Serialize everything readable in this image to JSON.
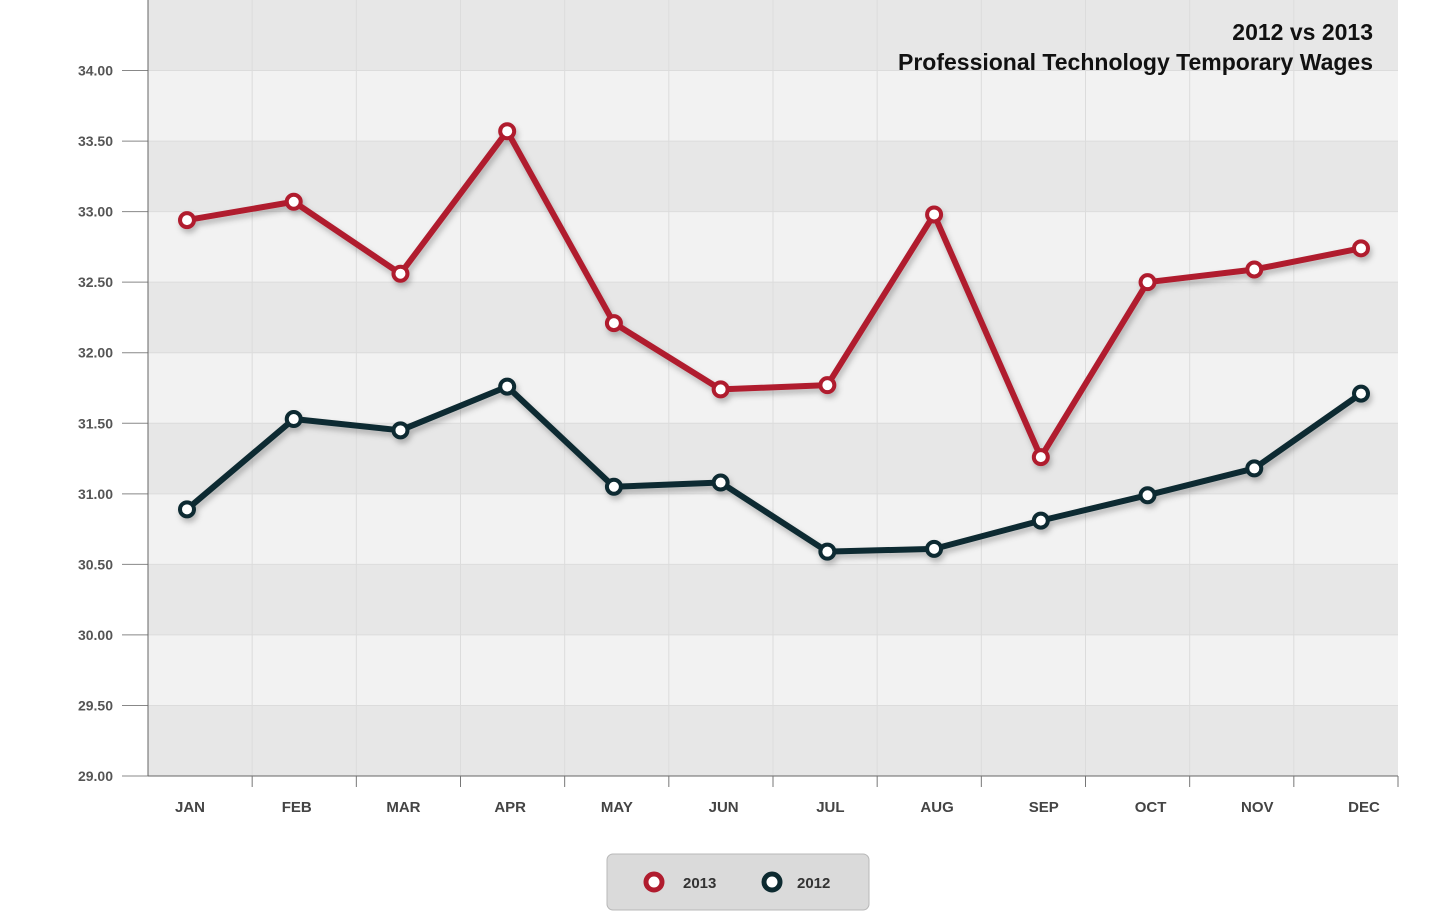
{
  "chart_data": {
    "type": "line",
    "title": "2012 vs 2013",
    "subtitle": "Professional Technology Temporary Wages",
    "xlabel": "",
    "ylabel": "",
    "categories": [
      "JAN",
      "FEB",
      "MAR",
      "APR",
      "MAY",
      "JUN",
      "JUL",
      "AUG",
      "SEP",
      "OCT",
      "NOV",
      "DEC"
    ],
    "ylim": [
      29,
      34.5
    ],
    "yticks": [
      "29.00",
      "29.50",
      "30.00",
      "30.50",
      "31.00",
      "31.50",
      "32.00",
      "32.50",
      "33.00",
      "33.50",
      "34.00"
    ],
    "grid": true,
    "legend_position": "bottom",
    "series": [
      {
        "name": "2013",
        "color": "#b01c2e",
        "values": [
          32.94,
          33.07,
          32.56,
          33.57,
          32.21,
          31.74,
          31.77,
          32.98,
          31.26,
          32.5,
          32.59,
          32.74
        ]
      },
      {
        "name": "2012",
        "color": "#0d2a30",
        "values": [
          30.89,
          31.53,
          31.45,
          31.76,
          31.05,
          31.08,
          30.59,
          30.61,
          30.81,
          30.99,
          31.18,
          31.71
        ]
      }
    ]
  }
}
